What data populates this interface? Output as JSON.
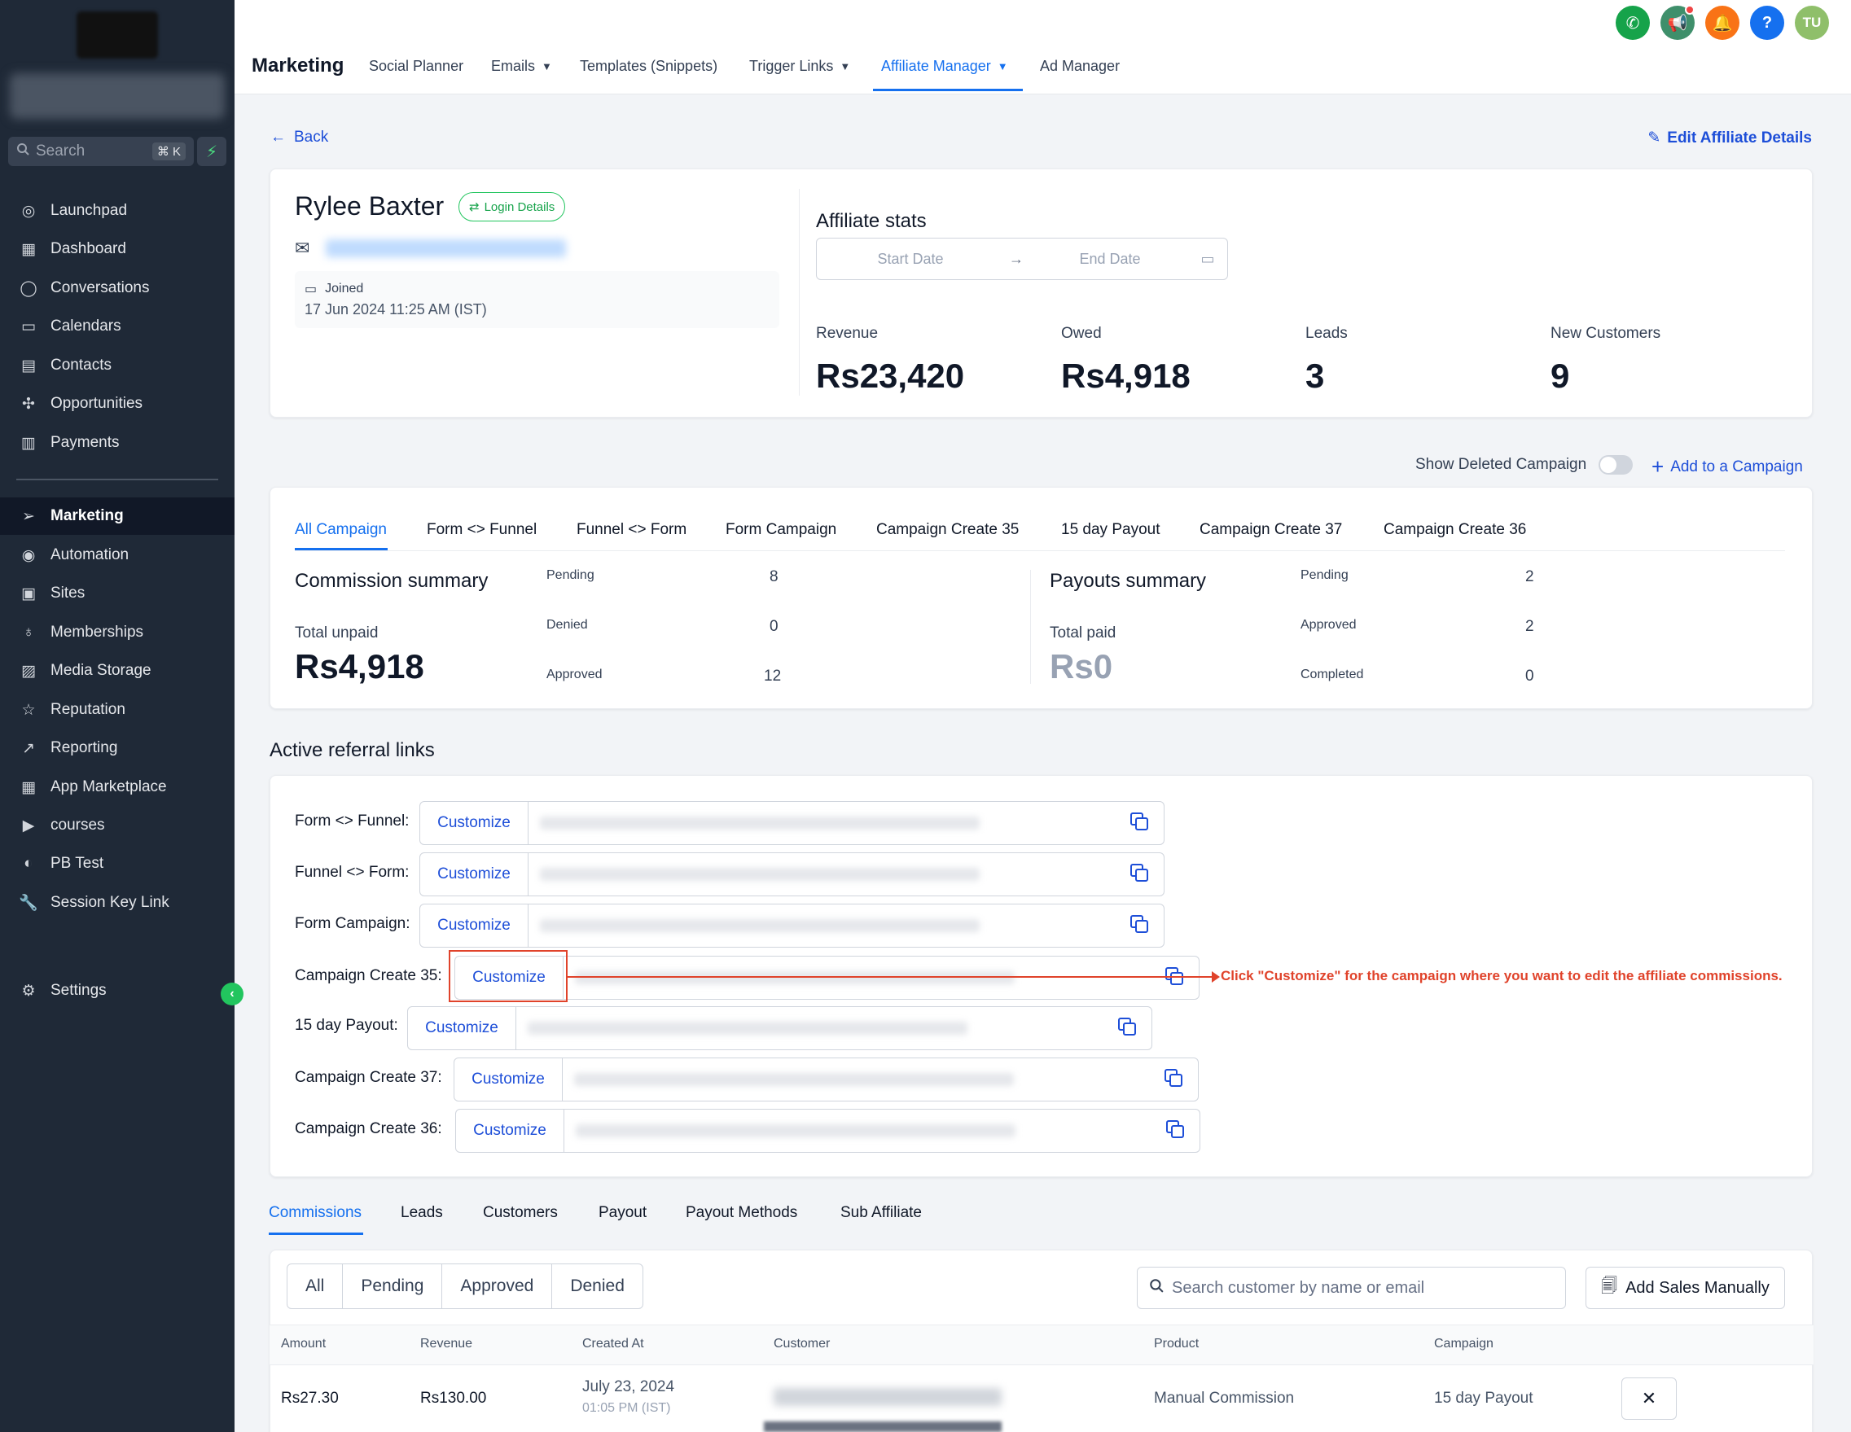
{
  "sidebar": {
    "search_label": "Search",
    "search_shortcut": "⌘ K",
    "items": [
      {
        "label": "Launchpad",
        "icon": "rocket-icon"
      },
      {
        "label": "Dashboard",
        "icon": "grid-icon"
      },
      {
        "label": "Conversations",
        "icon": "chat-icon"
      },
      {
        "label": "Calendars",
        "icon": "calendar-icon"
      },
      {
        "label": "Contacts",
        "icon": "contacts-icon"
      },
      {
        "label": "Opportunities",
        "icon": "network-icon"
      },
      {
        "label": "Payments",
        "icon": "invoice-icon"
      },
      {
        "label": "Marketing",
        "icon": "send-icon"
      },
      {
        "label": "Automation",
        "icon": "automation-icon"
      },
      {
        "label": "Sites",
        "icon": "sites-icon"
      },
      {
        "label": "Memberships",
        "icon": "badge-icon"
      },
      {
        "label": "Media Storage",
        "icon": "image-icon"
      },
      {
        "label": "Reputation",
        "icon": "star-icon"
      },
      {
        "label": "Reporting",
        "icon": "trend-icon"
      },
      {
        "label": "App Marketplace",
        "icon": "apps-icon"
      },
      {
        "label": "courses",
        "icon": "video-icon"
      },
      {
        "label": "PB Test",
        "icon": "globe-icon"
      },
      {
        "label": "Session Key Link",
        "icon": "wrench-icon"
      },
      {
        "label": "Settings",
        "icon": "gear-icon"
      }
    ]
  },
  "topbar": {
    "title": "Marketing",
    "tabs": [
      "Social Planner",
      "Emails",
      "Templates (Snippets)",
      "Trigger Links",
      "Affiliate Manager",
      "Ad Manager"
    ],
    "avatar": "TU",
    "colors": {
      "phone": "#16a34a",
      "megaphone": "#3f8f6b",
      "bell": "#f97316",
      "help": "#1570ef",
      "avatar": "#8fbf6a"
    }
  },
  "page": {
    "back": "Back",
    "edit": "Edit Affiliate Details"
  },
  "affiliate": {
    "name": "Rylee Baxter",
    "login_badge": "Login Details",
    "joined_label": "Joined",
    "joined_date": "17 Jun 2024 11:25 AM (IST)"
  },
  "stats": {
    "title": "Affiliate stats",
    "start_placeholder": "Start Date",
    "end_placeholder": "End Date",
    "items": [
      {
        "label": "Revenue",
        "value": "Rs23,420"
      },
      {
        "label": "Owed",
        "value": "Rs4,918"
      },
      {
        "label": "Leads",
        "value": "3"
      },
      {
        "label": "New Customers",
        "value": "9"
      }
    ]
  },
  "campaign_controls": {
    "show_deleted": "Show Deleted Campaign",
    "add": "Add to a Campaign"
  },
  "campaign_tabs": [
    "All Campaign",
    "Form <> Funnel",
    "Funnel <> Form",
    "Form Campaign",
    "Campaign Create 35",
    "15 day Payout",
    "Campaign Create 37",
    "Campaign Create 36"
  ],
  "commission_summary": {
    "title": "Commission summary",
    "sub": "Total unpaid",
    "value": "Rs4,918",
    "rows": [
      {
        "k": "Pending",
        "v": "8"
      },
      {
        "k": "Denied",
        "v": "0"
      },
      {
        "k": "Approved",
        "v": "12"
      }
    ]
  },
  "payout_summary": {
    "title": "Payouts summary",
    "sub": "Total paid",
    "value": "Rs0",
    "rows": [
      {
        "k": "Pending",
        "v": "2"
      },
      {
        "k": "Approved",
        "v": "2"
      },
      {
        "k": "Completed",
        "v": "0"
      }
    ]
  },
  "referral": {
    "title": "Active referral links",
    "button": "Customize",
    "links": [
      "Form <> Funnel:",
      "Funnel <> Form:",
      "Form Campaign:",
      "Campaign Create 35:",
      "15 day Payout:",
      "Campaign Create 37:",
      "Campaign Create 36:"
    ],
    "annotation": "Click \"Customize\" for the campaign where you want to edit the affiliate commissions."
  },
  "bottom_tabs": [
    "Commissions",
    "Leads",
    "Customers",
    "Payout",
    "Payout Methods",
    "Sub Affiliate"
  ],
  "filters": [
    "All",
    "Pending",
    "Approved",
    "Denied"
  ],
  "search_customer_placeholder": "Search customer by name or email",
  "add_sales": "Add Sales Manually",
  "table": {
    "headers": [
      "Amount",
      "Revenue",
      "Created At",
      "Customer",
      "Product",
      "Campaign"
    ],
    "rows": [
      {
        "amount": "Rs27.30",
        "revenue": "Rs130.00",
        "date": "July 23, 2024",
        "time": "01:05 PM (IST)",
        "product": "Manual Commission",
        "campaign": "15 day Payout"
      }
    ]
  }
}
